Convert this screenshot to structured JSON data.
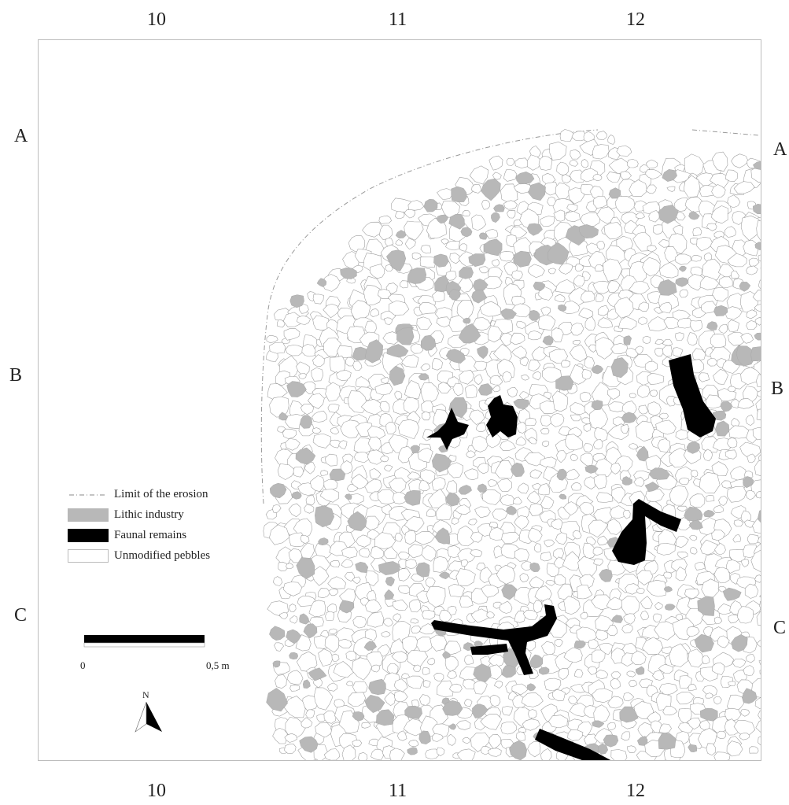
{
  "grid": {
    "columns_top": [
      "10",
      "11",
      "12"
    ],
    "columns_bottom": [
      "10",
      "11",
      "12"
    ],
    "rows_left": [
      "A",
      "B",
      "C"
    ],
    "rows_right": [
      "A",
      "B",
      "C"
    ]
  },
  "legend": {
    "items": [
      {
        "label": "Limit of the erosion",
        "symbol": "dashed-line"
      },
      {
        "label": "Lithic industry",
        "color": "#b8b8b8"
      },
      {
        "label": "Faunal remains",
        "color": "#000000"
      },
      {
        "label": "Unmodified pebbles",
        "color": "#ffffff"
      }
    ]
  },
  "scale_bar": {
    "start_label": "0",
    "end_label": "0,5 m"
  },
  "north_arrow": {
    "label": "N"
  },
  "colors": {
    "frame": "#bdbdbd",
    "pebble_outline": "#9a9a9a",
    "lithic": "#b8b8b8",
    "faunal": "#000000",
    "text": "#222222"
  }
}
